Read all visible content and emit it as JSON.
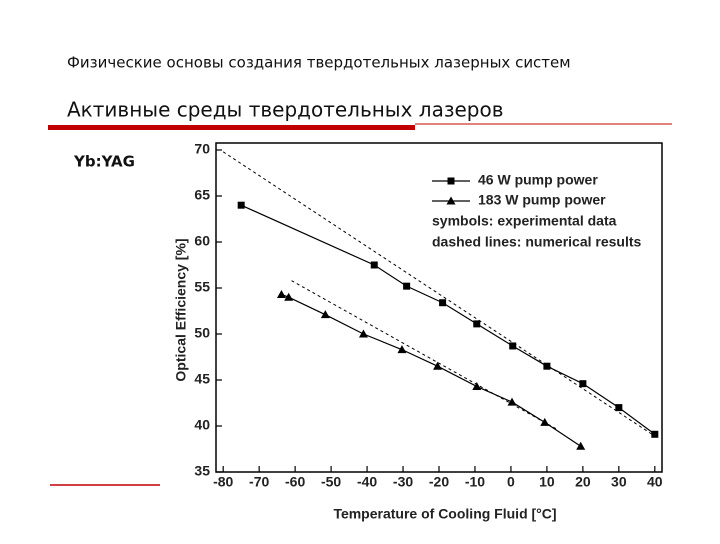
{
  "slide": {
    "header": "Физические основы создания твердотельных лазерных систем",
    "title": "Активные среды твердотельных лазеров",
    "label": "Yb:YAG"
  },
  "chart_data": {
    "type": "line",
    "xlabel": "Temperature of Cooling Fluid  [°C]",
    "ylabel": "Optical Efficiency [%]",
    "xlim": [
      -82,
      42
    ],
    "xticks": [
      -80,
      -70,
      -60,
      -50,
      -40,
      -30,
      -20,
      -10,
      0,
      10,
      20,
      30,
      40
    ],
    "ylim": [
      35,
      70
    ],
    "yticks": [
      35,
      40,
      45,
      50,
      55,
      60,
      65,
      70
    ],
    "series": [
      {
        "name": "46 W pump power",
        "color": "#000000",
        "marker": "square",
        "x": [
          -75,
          -38,
          -29,
          -19,
          -9.5,
          0.5,
          10,
          20,
          30,
          40
        ],
        "values": [
          64.0,
          57.5,
          55.2,
          53.4,
          51.1,
          48.7,
          46.5,
          44.6,
          42.0,
          39.1
        ]
      },
      {
        "name": "183 W pump power",
        "color": "#000000",
        "marker": "triangle",
        "x": [
          -63.8,
          -61.8,
          -51.6,
          -41,
          -30.3,
          -20.4,
          -9.5,
          0.3,
          9.4,
          19.4
        ],
        "values": [
          54.3,
          54.0,
          52.1,
          50.0,
          48.3,
          46.5,
          44.3,
          42.6,
          40.4,
          37.8
        ]
      },
      {
        "color": "#000000",
        "dashed": true,
        "x": [
          -80,
          40
        ],
        "values": [
          69.8,
          38.9
        ]
      },
      {
        "color": "#000000",
        "dashed": true,
        "x": [
          -61,
          13
        ],
        "values": [
          55.8,
          39.6
        ]
      }
    ],
    "legend_notes": [
      "symbols: experimental data",
      "dashed lines: numerical results"
    ]
  }
}
